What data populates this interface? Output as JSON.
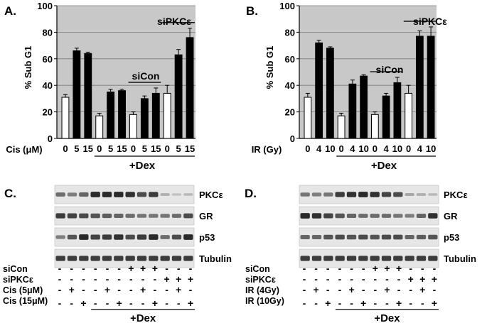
{
  "panel_a": {
    "letter": "A.",
    "ylabel": "% Sub G1",
    "xlabel": "Cis (μM)",
    "dex_label": "+Dex",
    "sicon_label": "siCon",
    "sipkc_label": "siPKCε"
  },
  "panel_b": {
    "letter": "B.",
    "ylabel": "% Sub G1",
    "xlabel": "IR (Gy)",
    "dex_label": "+Dex",
    "sicon_label": "siCon",
    "sipkc_label": "siPKCε"
  },
  "panel_c": {
    "letter": "C.",
    "blots": [
      "PKCε",
      "GR",
      "p53",
      "Tubulin"
    ],
    "rows": [
      {
        "label": "siCon",
        "signs": [
          "-",
          "-",
          "-",
          "-",
          "-",
          "-",
          "+",
          "+",
          "+",
          "-",
          "-",
          "-"
        ]
      },
      {
        "label": "siPKCε",
        "signs": [
          "-",
          "-",
          "-",
          "-",
          "-",
          "-",
          "-",
          "-",
          "-",
          "+",
          "+",
          "+"
        ]
      },
      {
        "label": "Cis (5μM)",
        "signs": [
          "-",
          "+",
          "-",
          "-",
          "+",
          "-",
          "-",
          "+",
          "-",
          "-",
          "+",
          "-"
        ]
      },
      {
        "label": "Cis (15μM)",
        "signs": [
          "-",
          "-",
          "+",
          "-",
          "-",
          "+",
          "-",
          "-",
          "+",
          "-",
          "-",
          "+"
        ]
      }
    ],
    "dex_label": "+Dex"
  },
  "panel_d": {
    "letter": "D.",
    "blots": [
      "PKCε",
      "GR",
      "p53",
      "Tubulin"
    ],
    "rows": [
      {
        "label": "siCon",
        "signs": [
          "-",
          "-",
          "-",
          "-",
          "-",
          "-",
          "+",
          "+",
          "+",
          "-",
          "-",
          "-"
        ]
      },
      {
        "label": "siPKCε",
        "signs": [
          "-",
          "-",
          "-",
          "-",
          "-",
          "-",
          "-",
          "-",
          "-",
          "+",
          "+",
          "+"
        ]
      },
      {
        "label": "IR (4Gy)",
        "signs": [
          "-",
          "+",
          "-",
          "-",
          "+",
          "-",
          "-",
          "+",
          "-",
          "-",
          "+",
          "-"
        ]
      },
      {
        "label": "IR (10Gy)",
        "signs": [
          "-",
          "-",
          "+",
          "-",
          "-",
          "+",
          "-",
          "-",
          "+",
          "-",
          "-",
          "+"
        ]
      }
    ],
    "dex_label": "+Dex"
  },
  "chart_data": [
    {
      "type": "bar",
      "ylabel": "% Sub G1",
      "xlabel": "Cis (μM)",
      "ylim": [
        0,
        100
      ],
      "yticks": [
        0,
        20,
        40,
        60,
        80,
        100
      ],
      "grid": true,
      "categories": [
        "0",
        "5",
        "15",
        "0",
        "5",
        "15",
        "0",
        "5",
        "15",
        "0",
        "5",
        "15"
      ],
      "values": [
        31,
        66,
        64,
        17,
        35,
        36,
        18,
        30,
        34,
        34,
        63,
        76
      ],
      "errors": [
        2,
        2,
        1,
        2,
        2,
        1,
        2,
        2,
        4,
        6,
        4,
        7
      ],
      "fill": [
        "white",
        "black",
        "black",
        "white",
        "black",
        "black",
        "white",
        "black",
        "black",
        "white",
        "black",
        "black"
      ],
      "groups": [
        {
          "label": "siCon",
          "from": 6,
          "to": 8
        },
        {
          "label": "siPKCε",
          "from": 9,
          "to": 11
        },
        {
          "label": "+Dex",
          "from": 3,
          "to": 11
        }
      ]
    },
    {
      "type": "bar",
      "ylabel": "% Sub G1",
      "xlabel": "IR (Gy)",
      "ylim": [
        0,
        100
      ],
      "yticks": [
        0,
        20,
        40,
        60,
        80,
        100
      ],
      "grid": true,
      "categories": [
        "0",
        "4",
        "10",
        "0",
        "4",
        "10",
        "0",
        "4",
        "10",
        "0",
        "4",
        "10"
      ],
      "values": [
        31,
        72,
        68,
        17,
        41,
        47,
        18,
        32,
        42,
        34,
        77,
        77
      ],
      "errors": [
        3,
        2,
        1,
        2,
        3,
        1,
        2,
        2,
        4,
        6,
        4,
        7
      ],
      "fill": [
        "white",
        "black",
        "black",
        "white",
        "black",
        "black",
        "white",
        "black",
        "black",
        "white",
        "black",
        "black"
      ],
      "groups": [
        {
          "label": "siCon",
          "from": 6,
          "to": 8
        },
        {
          "label": "siPKCε",
          "from": 9,
          "to": 11
        },
        {
          "label": "+Dex",
          "from": 3,
          "to": 11
        }
      ]
    }
  ],
  "colors": {
    "plot_bg": "#c8c8c8",
    "blot_bg": "#e6e6e6",
    "band": "#222222"
  }
}
